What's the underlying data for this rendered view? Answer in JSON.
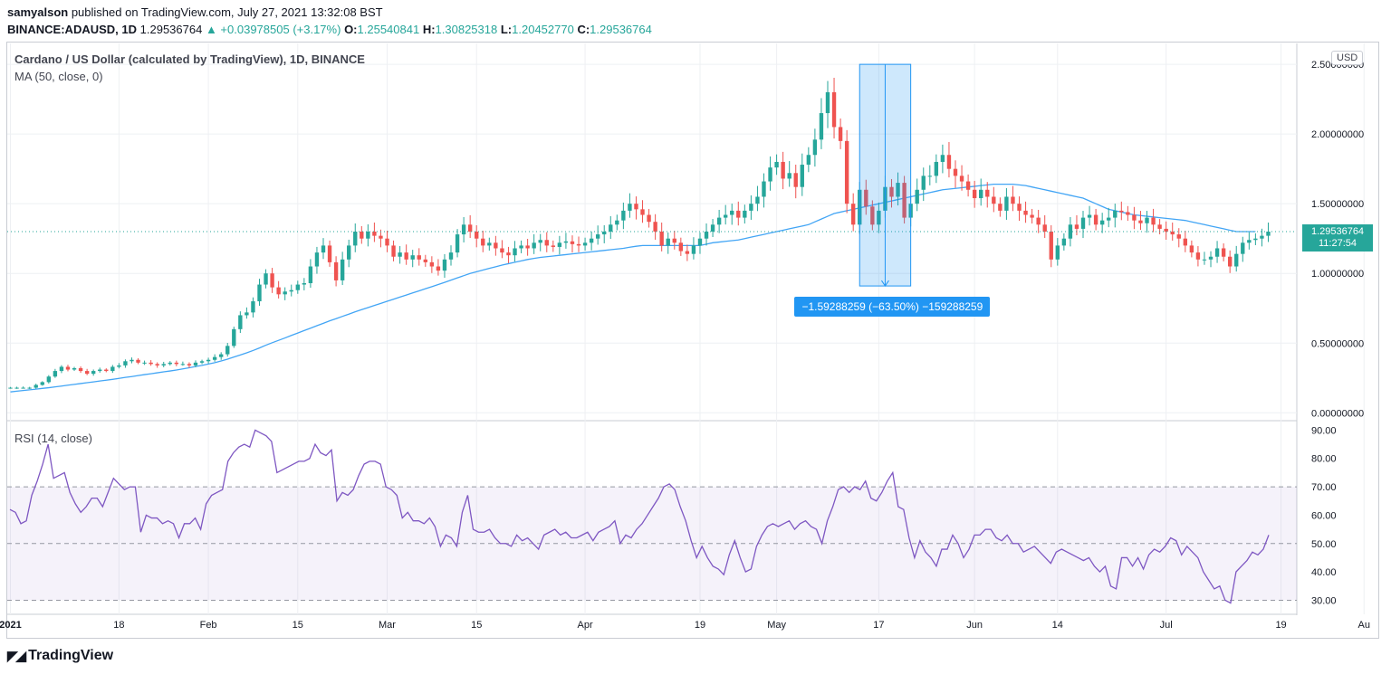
{
  "header": {
    "publisher": "samyalson",
    "published_text": "published on TradingView.com, July 27, 2021 13:32:08 BST",
    "symbol": "BINANCE:ADAUSD, 1D",
    "last": "1.29536764",
    "change": "▲ +0.03978505 (+3.17%)",
    "o_label": "O:",
    "o_value": "1.25540841",
    "h_label": "H:",
    "h_value": "1.30825318",
    "l_label": "L:",
    "l_value": "1.20452770",
    "c_label": "C:",
    "c_value": "1.29536764"
  },
  "pane_titles": {
    "main": "Cardano / US Dollar (calculated by TradingView), 1D, BINANCE",
    "ma": "MA (50, close, 0)",
    "rsi": "RSI (14, close)"
  },
  "currency_button": "USD",
  "price_tag": {
    "price": "1.29536764",
    "countdown": "11:27:54"
  },
  "measure_label": "−1.59288259 (−63.50%) −159288259",
  "logo_text": "TradingView",
  "colors": {
    "up": "#26a69a",
    "down": "#ef5350",
    "ma": "#42a5f5",
    "rsi": "#7e57c2",
    "measure": "#2196f3"
  },
  "chart_data": [
    {
      "type": "candlestick",
      "title": "Cardano / US Dollar (calculated by TradingView), 1D, BINANCE",
      "y_axis_ticks": [
        "0.00000000",
        "0.50000000",
        "1.00000000",
        "1.50000000",
        "2.00000000",
        "2.50000000"
      ],
      "ylim": [
        -0.05,
        2.65
      ],
      "x_axis_ticks": [
        "2021",
        "18",
        "Feb",
        "15",
        "Mar",
        "15",
        "Apr",
        "19",
        "May",
        "17",
        "Jun",
        "14",
        "Jul",
        "19",
        "Au"
      ],
      "x_tick_day_index": [
        0,
        17,
        31,
        45,
        59,
        73,
        90,
        108,
        120,
        136,
        151,
        164,
        181,
        199,
        212
      ],
      "closes": [
        0.18,
        0.18,
        0.18,
        0.18,
        0.2,
        0.22,
        0.26,
        0.3,
        0.33,
        0.31,
        0.32,
        0.3,
        0.28,
        0.3,
        0.31,
        0.3,
        0.33,
        0.34,
        0.37,
        0.38,
        0.36,
        0.36,
        0.35,
        0.34,
        0.35,
        0.36,
        0.35,
        0.35,
        0.34,
        0.36,
        0.37,
        0.38,
        0.4,
        0.42,
        0.48,
        0.6,
        0.7,
        0.72,
        0.8,
        0.92,
        1.0,
        0.9,
        0.85,
        0.87,
        0.88,
        0.92,
        0.93,
        1.05,
        1.15,
        1.2,
        1.08,
        0.95,
        1.1,
        1.2,
        1.3,
        1.25,
        1.3,
        1.27,
        1.25,
        1.2,
        1.12,
        1.15,
        1.1,
        1.13,
        1.1,
        1.08,
        1.05,
        1.02,
        1.1,
        1.15,
        1.28,
        1.35,
        1.3,
        1.25,
        1.2,
        1.22,
        1.18,
        1.15,
        1.13,
        1.18,
        1.2,
        1.18,
        1.22,
        1.24,
        1.2,
        1.19,
        1.22,
        1.23,
        1.21,
        1.2,
        1.22,
        1.25,
        1.28,
        1.3,
        1.35,
        1.38,
        1.45,
        1.5,
        1.46,
        1.42,
        1.37,
        1.3,
        1.2,
        1.25,
        1.22,
        1.16,
        1.14,
        1.2,
        1.25,
        1.3,
        1.35,
        1.4,
        1.42,
        1.45,
        1.4,
        1.45,
        1.5,
        1.55,
        1.66,
        1.76,
        1.8,
        1.68,
        1.72,
        1.62,
        1.78,
        1.85,
        1.96,
        2.15,
        2.3,
        2.05,
        1.95,
        1.5,
        1.35,
        1.6,
        1.48,
        1.35,
        1.45,
        1.62,
        1.55,
        1.65,
        1.4,
        1.5,
        1.6,
        1.7,
        1.7,
        1.8,
        1.85,
        1.75,
        1.7,
        1.66,
        1.6,
        1.54,
        1.6,
        1.55,
        1.5,
        1.45,
        1.55,
        1.5,
        1.45,
        1.42,
        1.4,
        1.35,
        1.3,
        1.1,
        1.2,
        1.25,
        1.35,
        1.32,
        1.4,
        1.42,
        1.35,
        1.38,
        1.4,
        1.45,
        1.44,
        1.42,
        1.38,
        1.36,
        1.4,
        1.35,
        1.32,
        1.3,
        1.28,
        1.25,
        1.2,
        1.15,
        1.1,
        1.1,
        1.12,
        1.18,
        1.12,
        1.05,
        1.14,
        1.22,
        1.24,
        1.25,
        1.27,
        1.3
      ],
      "ma50": [
        0.15,
        0.155,
        0.16,
        0.165,
        0.17,
        0.175,
        0.18,
        0.186,
        0.192,
        0.198,
        0.204,
        0.21,
        0.216,
        0.222,
        0.228,
        0.234,
        0.24,
        0.247,
        0.254,
        0.26,
        0.267,
        0.274,
        0.28,
        0.287,
        0.294,
        0.3,
        0.307,
        0.315,
        0.323,
        0.332,
        0.34,
        0.35,
        0.36,
        0.372,
        0.385,
        0.4,
        0.415,
        0.43,
        0.447,
        0.465,
        0.485,
        0.503,
        0.52,
        0.537,
        0.555,
        0.572,
        0.59,
        0.607,
        0.625,
        0.642,
        0.66,
        0.675,
        0.692,
        0.708,
        0.725,
        0.74,
        0.755,
        0.77,
        0.785,
        0.8,
        0.815,
        0.83,
        0.845,
        0.86,
        0.875,
        0.89,
        0.905,
        0.92,
        0.936,
        0.952,
        0.968,
        0.984,
        1.0,
        1.012,
        1.024,
        1.036,
        1.048,
        1.06,
        1.07,
        1.08,
        1.09,
        1.1,
        1.108,
        1.115,
        1.12,
        1.125,
        1.13,
        1.135,
        1.14,
        1.145,
        1.15,
        1.155,
        1.16,
        1.165,
        1.17,
        1.175,
        1.18,
        1.188,
        1.195,
        1.2,
        1.2,
        1.2,
        1.2,
        1.2,
        1.2,
        1.2,
        1.2,
        1.2,
        1.2,
        1.21,
        1.22,
        1.225,
        1.23,
        1.235,
        1.24,
        1.25,
        1.26,
        1.27,
        1.28,
        1.29,
        1.3,
        1.31,
        1.32,
        1.33,
        1.34,
        1.35,
        1.37,
        1.39,
        1.41,
        1.43,
        1.44,
        1.45,
        1.46,
        1.47,
        1.48,
        1.49,
        1.5,
        1.51,
        1.52,
        1.53,
        1.54,
        1.55,
        1.56,
        1.57,
        1.58,
        1.59,
        1.6,
        1.605,
        1.61,
        1.615,
        1.62,
        1.625,
        1.63,
        1.635,
        1.64,
        1.64,
        1.64,
        1.64,
        1.635,
        1.63,
        1.62,
        1.61,
        1.6,
        1.59,
        1.58,
        1.57,
        1.56,
        1.55,
        1.54,
        1.52,
        1.5,
        1.48,
        1.46,
        1.45,
        1.44,
        1.43,
        1.42,
        1.415,
        1.41,
        1.405,
        1.4,
        1.395,
        1.39,
        1.385,
        1.38,
        1.37,
        1.36,
        1.35,
        1.34,
        1.33,
        1.32,
        1.31,
        1.3,
        1.3,
        1.3,
        1.3
      ],
      "measurement": {
        "from_price": 2.5,
        "to_price": 0.91,
        "label": "−1.59288259 (−63.50%) −159288259"
      }
    },
    {
      "type": "line",
      "title": "RSI (14, close)",
      "y_axis_ticks": [
        "30.00",
        "40.00",
        "50.00",
        "60.00",
        "70.00",
        "80.00",
        "90.00"
      ],
      "ylim": [
        26,
        93
      ],
      "band": [
        30,
        70
      ],
      "midline": 50,
      "values": [
        62,
        61,
        57,
        58,
        67,
        72,
        78,
        85,
        73,
        74,
        75,
        68,
        64,
        61,
        63,
        66,
        66,
        63,
        68,
        73,
        71,
        69,
        70,
        70,
        54,
        60,
        59,
        59,
        57,
        58,
        57,
        52,
        57,
        57,
        59,
        55,
        64,
        67,
        68,
        69,
        79,
        82,
        84,
        85,
        84,
        90,
        89,
        88,
        86,
        75,
        76,
        77,
        78,
        79,
        79,
        80,
        85,
        82,
        81,
        83,
        65,
        68,
        67,
        69,
        74,
        78,
        79,
        79,
        78,
        70,
        69,
        67,
        59,
        61,
        58,
        58,
        57,
        59,
        56,
        49,
        53,
        52,
        49,
        61,
        67,
        55,
        54,
        54,
        55,
        52,
        50,
        50,
        49,
        53,
        51,
        52,
        50,
        48,
        53,
        54,
        55,
        53,
        54,
        52,
        52,
        53,
        54,
        51,
        54,
        55,
        56,
        58,
        50,
        53,
        52,
        55,
        57,
        60,
        63,
        66,
        70,
        71,
        69,
        63,
        58,
        51,
        45,
        49,
        45,
        42,
        41,
        39,
        46,
        51,
        45,
        40,
        41,
        49,
        53,
        56,
        57,
        56,
        57,
        58,
        55,
        57,
        58,
        56,
        55,
        50,
        58,
        63,
        69,
        70,
        68,
        70,
        69,
        72,
        66,
        65,
        68,
        72,
        75,
        63,
        62,
        52,
        45,
        51,
        47,
        45,
        42,
        48,
        48,
        53,
        50,
        45,
        48,
        53,
        53,
        55,
        55,
        52,
        51,
        53,
        50,
        50,
        47,
        48,
        49,
        47,
        45,
        43,
        47,
        48,
        47,
        46,
        45,
        44,
        45,
        42,
        40,
        42,
        35,
        34,
        45,
        45,
        42,
        45,
        41,
        46,
        48,
        47,
        49,
        52,
        51,
        46,
        49,
        47,
        45,
        40,
        37,
        34,
        35,
        30,
        29,
        40,
        42,
        44,
        47,
        46,
        48,
        53
      ]
    }
  ]
}
